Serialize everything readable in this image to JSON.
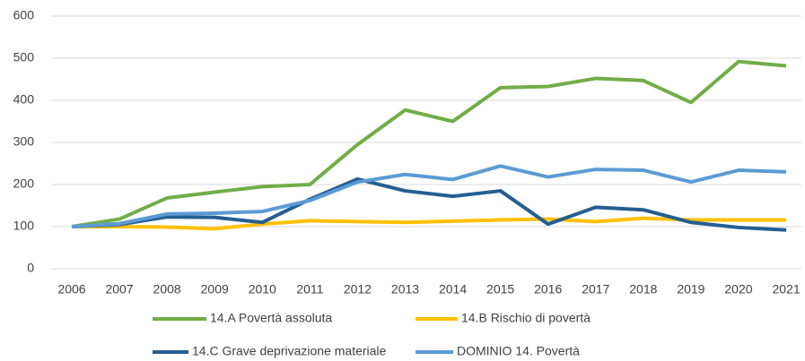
{
  "chart_data": {
    "type": "line",
    "categories": [
      "2006",
      "2007",
      "2008",
      "2009",
      "2010",
      "2011",
      "2012",
      "2013",
      "2014",
      "2015",
      "2016",
      "2017",
      "2018",
      "2019",
      "2020",
      "2021"
    ],
    "series": [
      {
        "name": "14.A Povertà assoluta",
        "color": "#70ad47",
        "values": [
          100,
          118,
          168,
          182,
          195,
          200,
          295,
          377,
          350,
          430,
          433,
          452,
          447,
          395,
          492,
          482
        ]
      },
      {
        "name": "14.B Rischio di povertà",
        "color": "#ffc000",
        "values": [
          100,
          100,
          99,
          95,
          106,
          114,
          112,
          110,
          113,
          116,
          118,
          112,
          120,
          116,
          116,
          116
        ]
      },
      {
        "name": "14.C Grave deprivazione materiale",
        "color": "#255e91",
        "values": [
          100,
          105,
          123,
          122,
          110,
          165,
          213,
          185,
          172,
          185,
          106,
          146,
          140,
          110,
          98,
          92
        ]
      },
      {
        "name": "DOMINIO 14. Povertà",
        "color": "#5b9bd5",
        "values": [
          100,
          107,
          130,
          132,
          136,
          162,
          206,
          224,
          212,
          244,
          218,
          236,
          234,
          206,
          234,
          230
        ]
      }
    ],
    "ylim": [
      0,
      600
    ],
    "yticks": [
      0,
      100,
      200,
      300,
      400,
      500,
      600
    ],
    "grid": true,
    "legend": "bottom"
  }
}
